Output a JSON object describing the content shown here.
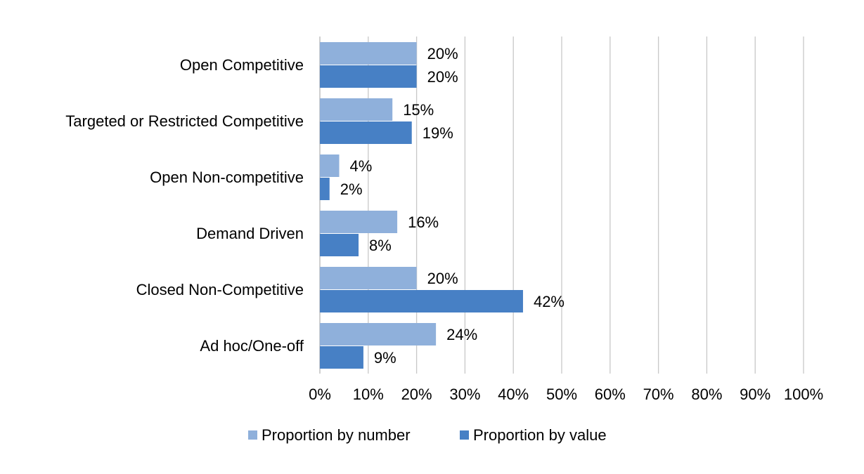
{
  "chart_data": {
    "type": "bar",
    "orientation": "horizontal",
    "title": "",
    "xlabel": "",
    "ylabel": "",
    "categories": [
      "Open Competitive",
      "Targeted or Restricted Competitive",
      "Open Non-competitive",
      "Demand Driven",
      "Closed Non-Competitive",
      "Ad hoc/One-off"
    ],
    "series": [
      {
        "name": "Proportion by number",
        "color": "#8FB0DB",
        "values": [
          20,
          15,
          4,
          16,
          20,
          24
        ],
        "labels": [
          "20%",
          "15%",
          "4%",
          "16%",
          "20%",
          "24%"
        ]
      },
      {
        "name": "Proportion by value",
        "color": "#4780C5",
        "values": [
          20,
          19,
          2,
          8,
          42,
          9
        ],
        "labels": [
          "20%",
          "19%",
          "2%",
          "8%",
          "42%",
          "9%"
        ]
      }
    ],
    "xlim": [
      0,
      100
    ],
    "xticks": [
      0,
      10,
      20,
      30,
      40,
      50,
      60,
      70,
      80,
      90,
      100
    ],
    "xtick_labels": [
      "0%",
      "10%",
      "20%",
      "30%",
      "40%",
      "50%",
      "60%",
      "70%",
      "80%",
      "90%",
      "100%"
    ],
    "grid": true,
    "legend": "bottom",
    "gridline_color": "#C8C8C8",
    "axis_color": "#BFBFBF"
  }
}
